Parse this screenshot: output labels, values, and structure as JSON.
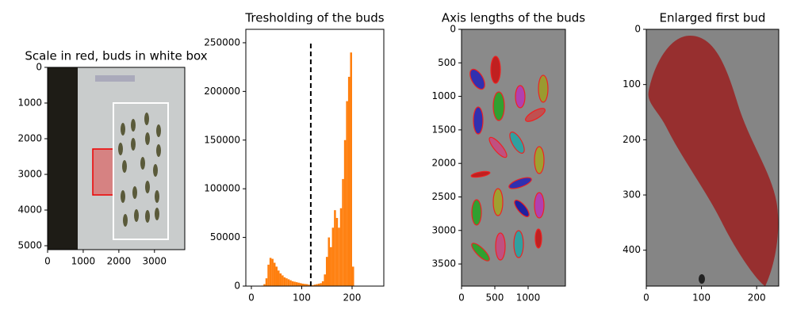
{
  "chart_data": [
    {
      "type": "image",
      "title": "Scale in red, buds in white box",
      "xlim": [
        0,
        3850
      ],
      "xticks": [
        0,
        1000,
        2000,
        3000
      ],
      "ylim": [
        5110,
        0
      ],
      "yticks": [
        0,
        1000,
        2000,
        3000,
        4000,
        5000
      ]
    },
    {
      "type": "histogram",
      "title": "Tresholding of the buds",
      "color": "#ff7f0e",
      "bins": [
        0,
        4,
        8,
        12,
        16,
        20,
        24,
        28,
        32,
        36,
        40,
        44,
        48,
        52,
        56,
        60,
        64,
        68,
        72,
        76,
        80,
        84,
        88,
        92,
        96,
        100,
        104,
        108,
        112,
        116,
        120,
        124,
        128,
        132,
        136,
        140,
        144,
        148,
        152,
        156,
        160,
        164,
        168,
        172,
        176,
        180,
        184,
        188,
        192,
        196,
        200,
        204,
        208,
        212,
        216,
        220,
        224,
        228,
        232,
        236,
        240,
        244,
        248,
        252,
        256
      ],
      "values": [
        0,
        0,
        0,
        0,
        0,
        500,
        2000,
        8000,
        22000,
        29000,
        28000,
        24000,
        20000,
        16000,
        13000,
        11000,
        9000,
        8000,
        7000,
        6000,
        5000,
        4500,
        4000,
        3500,
        3000,
        2500,
        2200,
        2000,
        1500,
        1200,
        1000,
        1500,
        2000,
        2500,
        3000,
        5000,
        12000,
        30000,
        50000,
        40000,
        60000,
        78000,
        70000,
        60000,
        80000,
        110000,
        150000,
        190000,
        215000,
        240000,
        20000,
        0,
        0,
        0,
        0,
        0,
        0,
        0,
        0,
        0,
        0,
        0,
        0,
        0
      ],
      "vlines": [
        {
          "x": 118,
          "ymax": 250000
        }
      ],
      "xlim": [
        -11,
        263
      ],
      "xticks": [
        0,
        100,
        200
      ],
      "ylim": [
        0,
        263800
      ],
      "yticks": [
        0,
        50000,
        100000,
        150000,
        200000,
        250000
      ]
    },
    {
      "type": "image",
      "title": "Axis lengths of the buds",
      "xlim": [
        0,
        1560
      ],
      "xticks": [
        0,
        500,
        1000
      ],
      "ylim": [
        3830,
        0
      ],
      "yticks": [
        0,
        500,
        1000,
        1500,
        2000,
        2500,
        3000,
        3500
      ]
    },
    {
      "type": "image",
      "title": "Enlarged first bud",
      "xlim": [
        0,
        240
      ],
      "xticks": [
        0,
        100,
        200
      ],
      "ylim": [
        465,
        0
      ],
      "yticks": [
        0,
        100,
        200,
        300,
        400
      ]
    }
  ]
}
